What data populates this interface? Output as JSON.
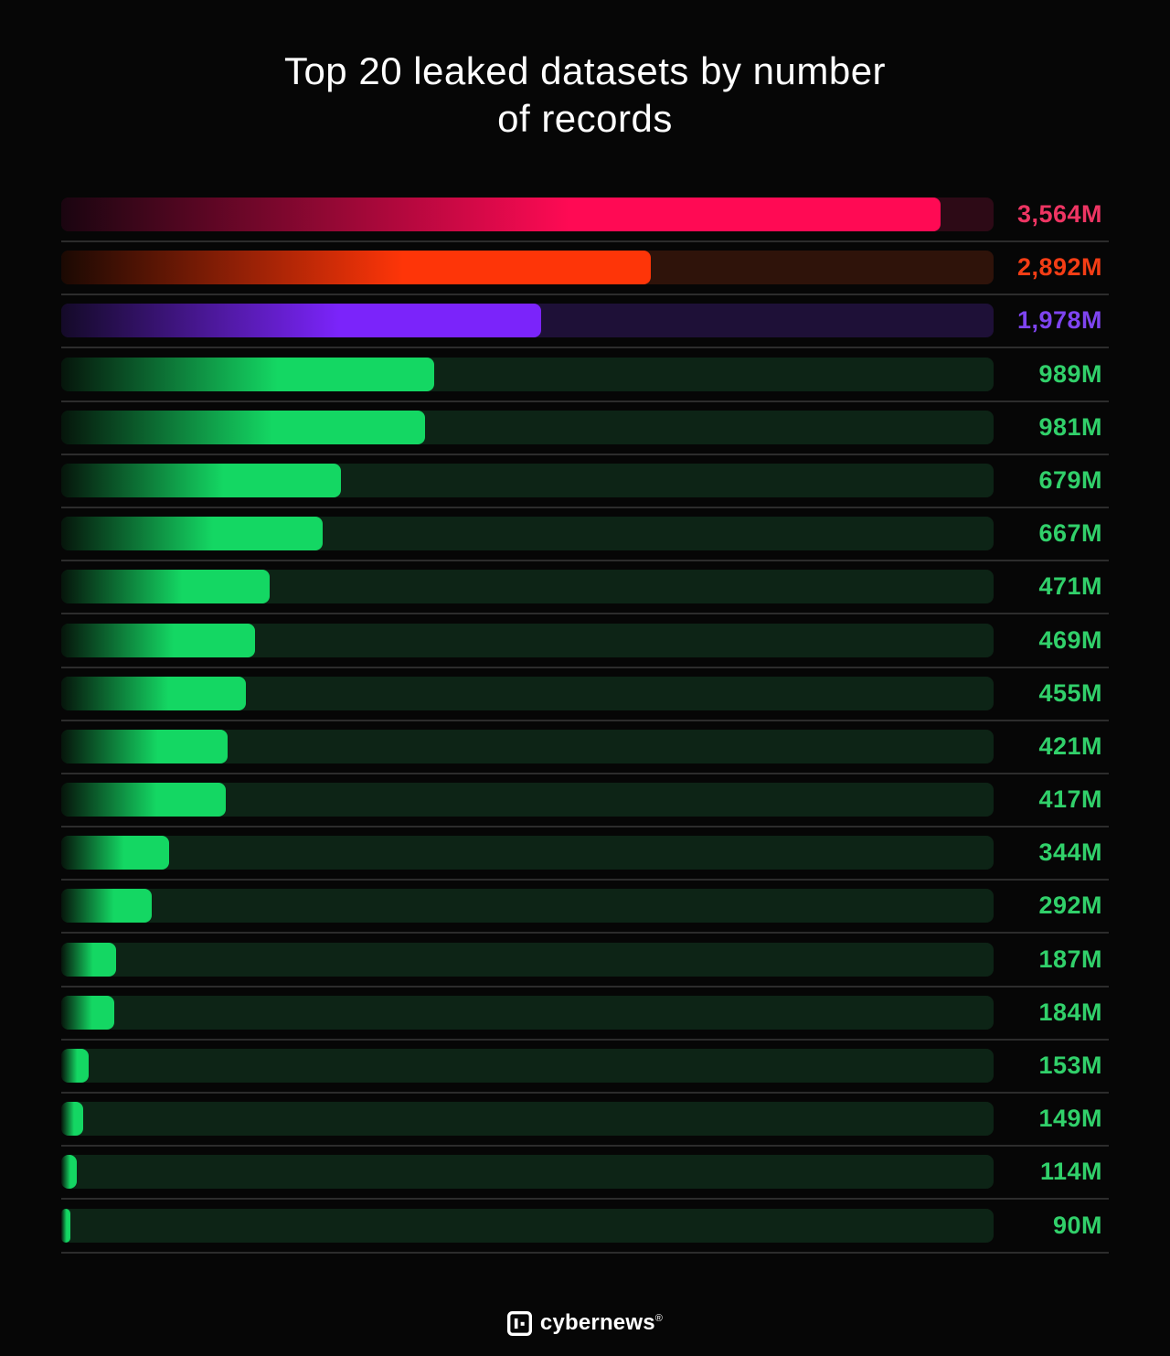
{
  "title": {
    "line1": "Top 20 leaked datasets by number",
    "line2": "of records"
  },
  "chart_data": {
    "type": "bar",
    "orientation": "horizontal",
    "title": "Top 20 leaked datasets by number of records",
    "grid": false,
    "legend": false,
    "value_suffix": "M",
    "rows": [
      {
        "label": "3,564M",
        "value": 3564,
        "pct": 94.3,
        "color": "pink"
      },
      {
        "label": "2,892M",
        "value": 2892,
        "pct": 63.2,
        "color": "orange"
      },
      {
        "label": "1,978M",
        "value": 1978,
        "pct": 51.5,
        "color": "purple"
      },
      {
        "label": "989M",
        "value": 989,
        "pct": 40.0,
        "color": "green"
      },
      {
        "label": "981M",
        "value": 981,
        "pct": 39.0,
        "color": "green"
      },
      {
        "label": "679M",
        "value": 679,
        "pct": 30.0,
        "color": "green"
      },
      {
        "label": "667M",
        "value": 667,
        "pct": 28.0,
        "color": "green"
      },
      {
        "label": "471M",
        "value": 471,
        "pct": 22.4,
        "color": "green"
      },
      {
        "label": "469M",
        "value": 469,
        "pct": 20.8,
        "color": "green"
      },
      {
        "label": "455M",
        "value": 455,
        "pct": 19.8,
        "color": "green"
      },
      {
        "label": "421M",
        "value": 421,
        "pct": 17.8,
        "color": "green"
      },
      {
        "label": "417M",
        "value": 417,
        "pct": 17.6,
        "color": "green"
      },
      {
        "label": "344M",
        "value": 344,
        "pct": 11.6,
        "color": "green"
      },
      {
        "label": "292M",
        "value": 292,
        "pct": 9.7,
        "color": "green"
      },
      {
        "label": "187M",
        "value": 187,
        "pct": 5.9,
        "color": "green"
      },
      {
        "label": "184M",
        "value": 184,
        "pct": 5.7,
        "color": "green"
      },
      {
        "label": "153M",
        "value": 153,
        "pct": 2.9,
        "color": "green"
      },
      {
        "label": "149M",
        "value": 149,
        "pct": 2.4,
        "color": "green"
      },
      {
        "label": "114M",
        "value": 114,
        "pct": 1.7,
        "color": "green"
      },
      {
        "label": "90M",
        "value": 90,
        "pct": 1.0,
        "color": "green"
      }
    ],
    "colors": {
      "pink": {
        "fill": "#ff0a54",
        "fill_dark": "#1a0510",
        "track": "#2d0a16",
        "label": "#ee3563"
      },
      "orange": {
        "fill": "#fe3508",
        "fill_dark": "#1b0903",
        "track": "#2f130a",
        "label": "#f43d15"
      },
      "purple": {
        "fill": "#7b24fa",
        "fill_dark": "#140a28",
        "track": "#1e1037",
        "label": "#7e44f0"
      },
      "green": {
        "fill": "#14d763",
        "fill_dark": "#06150b",
        "track": "#0d2416",
        "label": "#31d06a"
      }
    }
  },
  "footer": {
    "brand": "cybernews",
    "reg": "®"
  }
}
